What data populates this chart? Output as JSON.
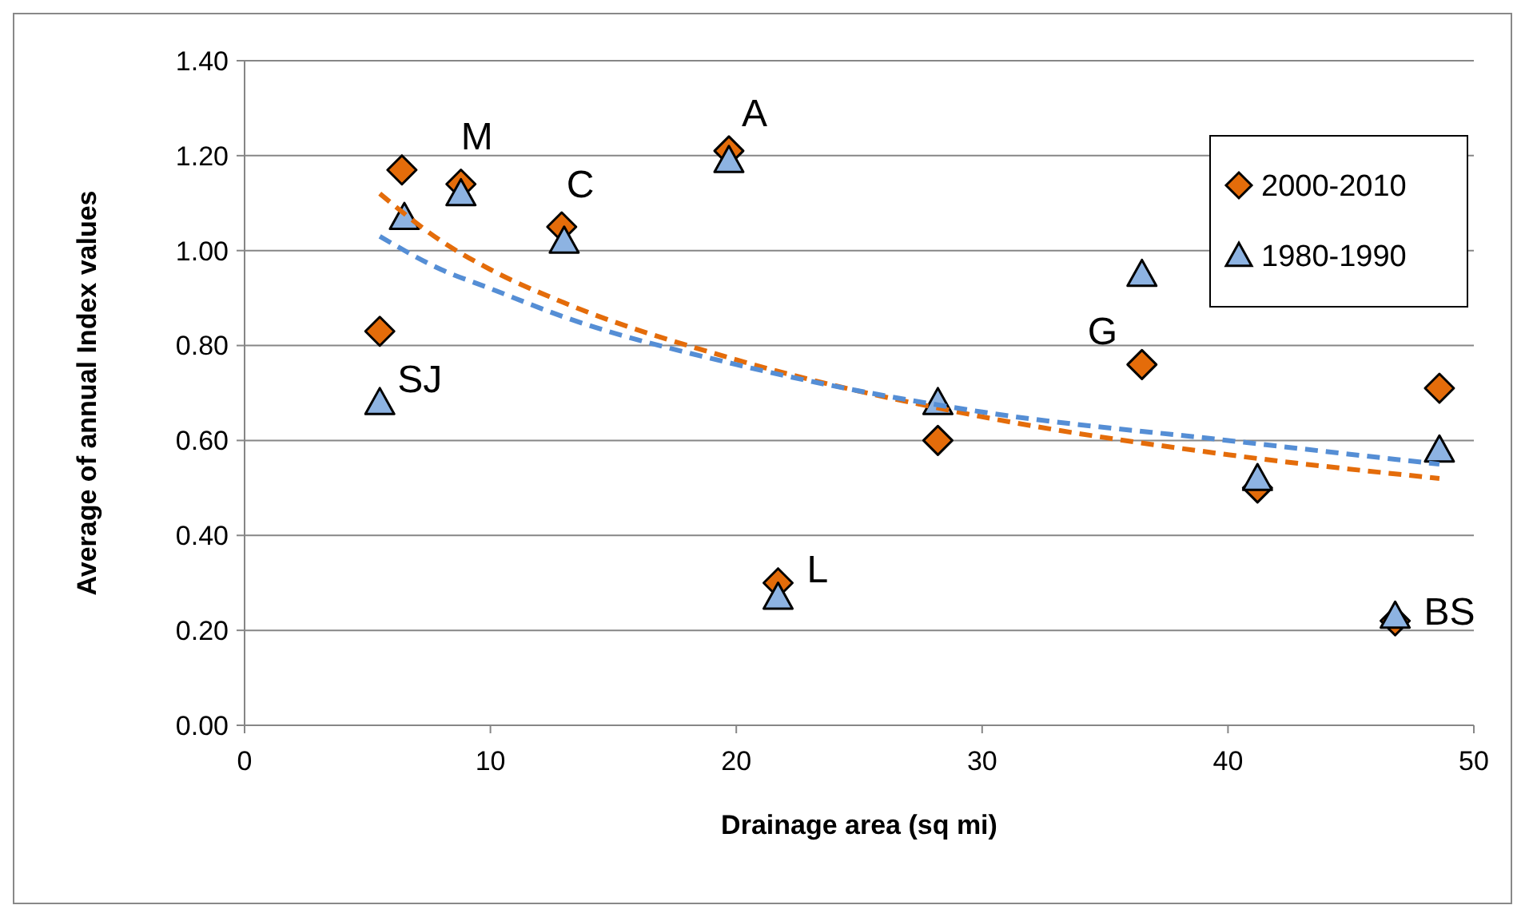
{
  "chart_data": {
    "type": "scatter",
    "xlabel": "Drainage area (sq mi)",
    "ylabel": "Average of annual Index values",
    "xlim": [
      0,
      50
    ],
    "xticks": [
      0,
      10,
      20,
      30,
      40,
      50
    ],
    "ylim": [
      0,
      1.4
    ],
    "yticks": [
      {
        "value": 0,
        "label": "0.00"
      },
      {
        "value": 0.2,
        "label": "0.20"
      },
      {
        "value": 0.4,
        "label": "0.40"
      },
      {
        "value": 0.6,
        "label": "0.60"
      },
      {
        "value": 0.8,
        "label": "0.80"
      },
      {
        "value": 1,
        "label": "1.00"
      },
      {
        "value": 1.2,
        "label": "1.20"
      },
      {
        "value": 1.4,
        "label": "1.40"
      }
    ],
    "grid": "y",
    "legend": "top right",
    "series": [
      {
        "name": "2000-2010",
        "color": "#e46c0a",
        "marker": "diamond",
        "x": [
          5.5,
          6.4,
          8.8,
          12.9,
          19.7,
          21.7,
          28.2,
          36.5,
          41.2,
          46.8,
          48.6
        ],
        "values": [
          0.83,
          1.17,
          1.14,
          1.05,
          1.21,
          0.3,
          0.6,
          0.76,
          0.5,
          0.22,
          0.71
        ]
      },
      {
        "name": "1980-1990",
        "color": "#8db3e2",
        "marker": "triangle",
        "x": [
          5.5,
          6.5,
          8.8,
          13,
          19.7,
          21.7,
          28.2,
          36.5,
          41.2,
          46.8,
          48.6
        ],
        "values": [
          0.68,
          1.07,
          1.12,
          1.02,
          1.19,
          0.27,
          0.68,
          0.95,
          0.52,
          0.23,
          0.58
        ]
      },
      {
        "type": "line",
        "color": "#e46c0a",
        "line_style": "dashed",
        "x": [
          5.5,
          8,
          10,
          13,
          20,
          30,
          40,
          48.6
        ],
        "values": [
          1.12,
          1.02,
          0.96,
          0.89,
          0.77,
          0.65,
          0.57,
          0.52
        ]
      },
      {
        "type": "line",
        "color": "#558ed5",
        "line_style": "dashed",
        "x": [
          5.5,
          8,
          10,
          13,
          20,
          30,
          40,
          48.6
        ],
        "values": [
          1.03,
          0.96,
          0.92,
          0.86,
          0.76,
          0.66,
          0.6,
          0.55
        ]
      }
    ],
    "annotations": [
      {
        "text": "M",
        "x": 8.8,
        "y": 1.14
      },
      {
        "text": "C",
        "x": 12.9,
        "y": 1.05
      },
      {
        "text": "A",
        "x": 19.7,
        "y": 1.21
      },
      {
        "text": "SJ",
        "x": 5.5,
        "y": 0.68
      },
      {
        "text": "L",
        "x": 21.7,
        "y": 0.3
      },
      {
        "text": "G",
        "x": 36.5,
        "y": 0.76
      },
      {
        "text": "BS",
        "x": 46.8,
        "y": 0.22
      }
    ]
  }
}
